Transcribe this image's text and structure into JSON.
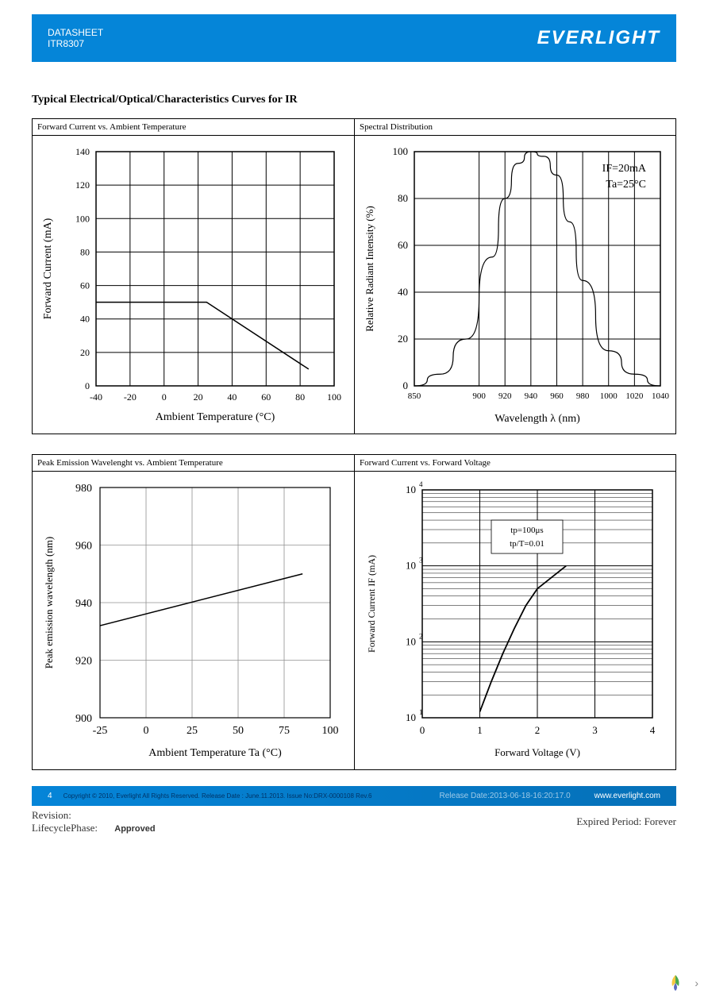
{
  "header": {
    "line1": "DATASHEET",
    "line2": "ITR8307",
    "brand": "EVERLIGHT"
  },
  "section_title": "Typical Electrical/Optical/Characteristics Curves for IR",
  "chart1": {
    "title": "Forward Current vs. Ambient Temperature",
    "type": "line",
    "xlabel": "Ambient Temperature (°C)",
    "ylabel": "Forward Current (mA)",
    "xlim": [
      -40,
      100
    ],
    "ylim": [
      0,
      140
    ],
    "xticks": [
      -40,
      -20,
      0,
      20,
      40,
      60,
      80,
      100
    ],
    "yticks": [
      0,
      20,
      40,
      60,
      80,
      100,
      120,
      140
    ],
    "data_x": [
      -40,
      25,
      85
    ],
    "data_y": [
      50,
      50,
      10
    ],
    "line_color": "#000000",
    "line_width": 1.5,
    "grid_color": "#000000",
    "background_color": "#ffffff",
    "label_fontsize": 14,
    "tick_fontsize": 12
  },
  "chart2": {
    "title": "Spectral Distribution",
    "type": "line",
    "xlabel": "Wavelength λ (nm)",
    "ylabel": "Relative Radiant Intensity (%)",
    "annotation": [
      "IF=20mA",
      "Ta=25°C"
    ],
    "xlim": [
      850,
      1040
    ],
    "ylim": [
      0,
      100
    ],
    "xticks": [
      850,
      900,
      920,
      940,
      960,
      980,
      1000,
      1020,
      1040
    ],
    "yticks": [
      0,
      20,
      40,
      60,
      80,
      100
    ],
    "data_x": [
      850,
      870,
      890,
      910,
      920,
      930,
      940,
      950,
      960,
      970,
      980,
      1000,
      1020,
      1040
    ],
    "data_y": [
      0,
      5,
      20,
      55,
      80,
      95,
      100,
      98,
      90,
      70,
      45,
      15,
      5,
      0
    ],
    "line_color": "#000000",
    "line_width": 1.2,
    "grid_color": "#000000",
    "background_color": "#ffffff"
  },
  "chart3": {
    "title": "Peak Emission Wavelenght   vs.   Ambient Temperature",
    "type": "line",
    "xlabel": "Ambient Temperature Ta (°C)",
    "ylabel": "Peak emission wavelength   (nm)",
    "xlim": [
      -25,
      100
    ],
    "ylim": [
      900,
      980
    ],
    "xticks": [
      -25,
      0,
      25,
      50,
      75,
      100
    ],
    "yticks": [
      900,
      920,
      940,
      960,
      980
    ],
    "data_x": [
      -25,
      85
    ],
    "data_y": [
      932,
      950
    ],
    "line_color": "#000000",
    "line_width": 1.5,
    "grid_color": "#909090",
    "background_color": "#ffffff"
  },
  "chart4": {
    "title": "Forward Current   vs. Forward Voltage",
    "type": "line",
    "yscale": "log",
    "xlabel": "Forward Voltage (V)",
    "ylabel": "Forward Current IF (mA)",
    "annotation": [
      "tp=100μs",
      "tp/T=0.01"
    ],
    "xlim": [
      0,
      4
    ],
    "ylim": [
      10,
      10000
    ],
    "xticks": [
      0,
      1,
      2,
      3,
      4
    ],
    "yticks_log": [
      1,
      2,
      3,
      4
    ],
    "data_x": [
      1.0,
      1.2,
      1.4,
      1.6,
      1.8,
      2.0,
      2.5
    ],
    "data_y": [
      12,
      30,
      70,
      150,
      300,
      500,
      1000
    ],
    "line_color": "#000000",
    "line_width": 1.8,
    "grid_color": "#000000",
    "background_color": "#ffffff"
  },
  "footer": {
    "page_num": "4",
    "copyright": "Copyright © 2010, Everlight All Rights Reserved. Release Date : June.11.2013. Issue No:DRX-0000108 Rev.6",
    "release": "Release Date:2013-06-18-16:20:17.0",
    "website": "www.everlight.com",
    "revision_label": "Revision:",
    "lifecycle_label": "LifecyclePhase:",
    "lifecycle_value": "Approved",
    "expired_label": "Expired Period:",
    "expired_value": "Forever"
  }
}
